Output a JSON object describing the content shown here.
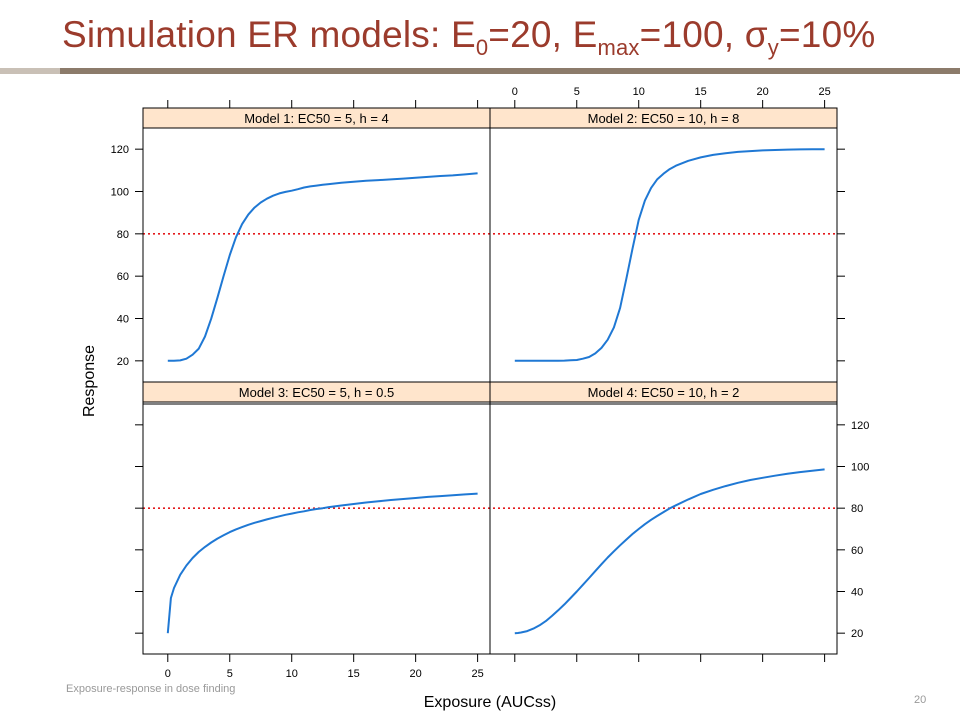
{
  "slide": {
    "title_main": "Simulation ER models: E",
    "title_sub0": "0",
    "title_mid1": "=20, E",
    "title_submax": "max",
    "title_mid2": "=100, σ",
    "title_suby": "y",
    "title_end": "=10%",
    "footer_text": "Exposure-response in dose finding",
    "page_number": "20"
  },
  "chart_data": {
    "type": "line",
    "xlabel": "Exposure (AUCss)",
    "ylabel": "Response",
    "xlim": [
      -2,
      26
    ],
    "ylim": [
      10,
      130
    ],
    "x_ticks": [
      0,
      5,
      10,
      15,
      20,
      25
    ],
    "y_ticks": [
      20,
      40,
      60,
      80,
      100,
      120
    ],
    "reference_line": {
      "y": 80,
      "style": "dotted",
      "color": "#e31a1c"
    },
    "line_color": "#1f78d4",
    "strip_color": "#ffe5cc",
    "model_params": {
      "E0": 20,
      "Emax": 100
    },
    "panels": [
      {
        "label": "Model 1: EC50 = 5, h = 4",
        "EC50": 5,
        "h": 4,
        "row": 0,
        "col": 0
      },
      {
        "label": "Model 2: EC50 = 10, h = 8",
        "EC50": 10,
        "h": 8,
        "row": 0,
        "col": 1
      },
      {
        "label": "Model 3: EC50 = 5, h = 0.5",
        "EC50": 5,
        "h": 0.5,
        "row": 1,
        "col": 0
      },
      {
        "label": "Model 4: EC50 = 10, h = 2",
        "EC50": 10,
        "h": 2,
        "row": 1,
        "col": 1
      }
    ],
    "x": [
      0,
      0.25,
      0.5,
      1,
      1.5,
      2,
      2.5,
      3,
      3.5,
      4,
      4.5,
      5,
      5.5,
      6,
      6.5,
      7,
      7.5,
      8,
      8.5,
      9,
      9.5,
      10,
      10.5,
      11,
      11.5,
      12,
      12.5,
      13,
      14,
      15,
      16,
      17,
      18,
      19,
      20,
      21,
      22,
      23,
      24,
      25
    ],
    "series": [
      {
        "values": [
          20,
          20,
          20,
          20.2,
          21,
          22.9,
          25.8,
          31.5,
          39.9,
          49.8,
          60.1,
          70,
          78.3,
          84.6,
          89.1,
          92.4,
          94.8,
          96.6,
          98,
          99.1,
          99.8,
          100.4,
          101.1,
          101.9,
          102.4,
          102.8,
          103.2,
          103.5,
          104.1,
          104.6,
          105.1,
          105.4,
          105.7,
          106.1,
          106.5,
          106.9,
          107.3,
          107.6,
          108.1,
          108.6
        ]
      },
      {
        "values": [
          20,
          20,
          20,
          20,
          20,
          20,
          20,
          20,
          20,
          20.1,
          20.3,
          20.4,
          21,
          21.8,
          23.5,
          26.1,
          30,
          35.8,
          45,
          58.7,
          73,
          86.6,
          95.7,
          101.7,
          105.8,
          108.4,
          110.6,
          112.2,
          114.5,
          116.1,
          117.3,
          118.1,
          118.7,
          119.1,
          119.4,
          119.6,
          119.8,
          119.9,
          120,
          120
        ]
      },
      {
        "values": [
          20,
          36.9,
          41.7,
          48,
          52.5,
          56.1,
          59,
          61.4,
          63.5,
          65.4,
          67,
          68.5,
          69.8,
          70.9,
          72,
          73,
          73.8,
          74.6,
          75.4,
          76.1,
          76.8,
          77.4,
          78,
          78.5,
          79.1,
          79.6,
          80,
          80.5,
          81.3,
          82,
          82.7,
          83.3,
          83.9,
          84.4,
          84.9,
          85.4,
          85.8,
          86.2,
          86.6,
          87
        ]
      },
      {
        "values": [
          20,
          20.1,
          20.3,
          21,
          22.2,
          23.8,
          25.8,
          28.3,
          31,
          33.8,
          36.9,
          40,
          43.2,
          46.5,
          49.8,
          53.1,
          56.3,
          59.3,
          62.2,
          64.9,
          67.6,
          70,
          72.3,
          74.4,
          76.3,
          78.1,
          79.9,
          81.4,
          84.2,
          86.8,
          88.8,
          90.6,
          92.2,
          93.5,
          94.6,
          95.6,
          96.5,
          97.3,
          98,
          98.6
        ]
      }
    ]
  }
}
